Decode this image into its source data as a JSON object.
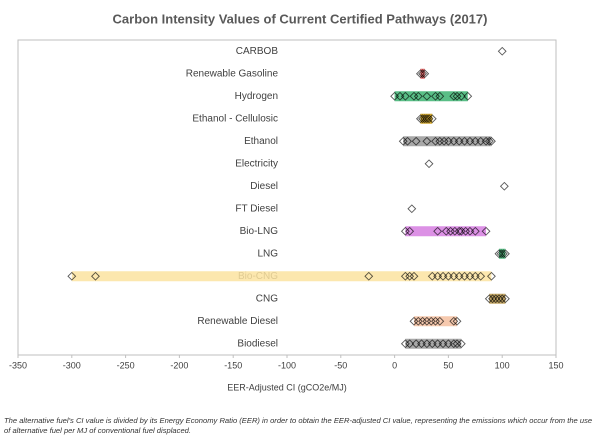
{
  "chart_data": {
    "type": "strip",
    "title": "Carbon Intensity Values of Current Certified Pathways (2017)",
    "x_label": "EER-Adjusted CI (gCO2e/MJ)",
    "xlim": [
      -350,
      150
    ],
    "xticks": [
      -350,
      -300,
      -250,
      -200,
      -150,
      -100,
      -50,
      0,
      50,
      100,
      150
    ],
    "series": [
      {
        "name": "CARBOB",
        "values": [
          100
        ]
      },
      {
        "name": "Renewable Gasoline",
        "color": "#e05050",
        "values": [
          24,
          26,
          28
        ]
      },
      {
        "name": "Hydrogen",
        "color": "#3cb371",
        "values": [
          0,
          5,
          10,
          18,
          22,
          30,
          38,
          42,
          55,
          58,
          62,
          68
        ]
      },
      {
        "name": "Ethanol - Cellulosic",
        "color": "#c8960a",
        "values": [
          24,
          26,
          28,
          30,
          32,
          35
        ]
      },
      {
        "name": "Ethanol",
        "color": "#999999",
        "values": [
          8,
          12,
          20,
          30,
          38,
          42,
          46,
          50,
          55,
          60,
          65,
          70,
          75,
          80,
          85,
          88,
          90
        ]
      },
      {
        "name": "Electricity",
        "values": [
          32
        ]
      },
      {
        "name": "Diesel",
        "values": [
          102
        ]
      },
      {
        "name": "FT Diesel",
        "values": [
          16
        ]
      },
      {
        "name": "Bio-LNG",
        "color": "#d67ee0",
        "values": [
          10,
          14,
          40,
          48,
          52,
          56,
          60,
          62,
          66,
          70,
          75,
          85
        ]
      },
      {
        "name": "LNG",
        "color": "#3cb371",
        "values": [
          97,
          99,
          101,
          103
        ]
      },
      {
        "name": "Bio-CNG",
        "color": "#fbe3a0",
        "values": [
          -300,
          -278,
          -24,
          10,
          14,
          18,
          35,
          40,
          45,
          50,
          55,
          60,
          65,
          70,
          75,
          80,
          90
        ]
      },
      {
        "name": "CNG",
        "color": "#b8964a",
        "values": [
          88,
          91,
          94,
          97,
          100,
          103
        ]
      },
      {
        "name": "Renewable Diesel",
        "color": "#f4c0a0",
        "values": [
          18,
          22,
          26,
          30,
          34,
          38,
          42,
          55,
          58
        ]
      },
      {
        "name": "Biodiesel",
        "color": "#999999",
        "values": [
          10,
          14,
          20,
          25,
          30,
          35,
          40,
          45,
          50,
          55,
          58,
          62
        ]
      }
    ],
    "note": "The alternative fuel's CI value is divided by its Energy Economy Ratio (EER) in order to obtain the EER-adjusted CI value, representing the emissions which occur from the use of alternative fuel per MJ of conventional fuel displaced."
  }
}
